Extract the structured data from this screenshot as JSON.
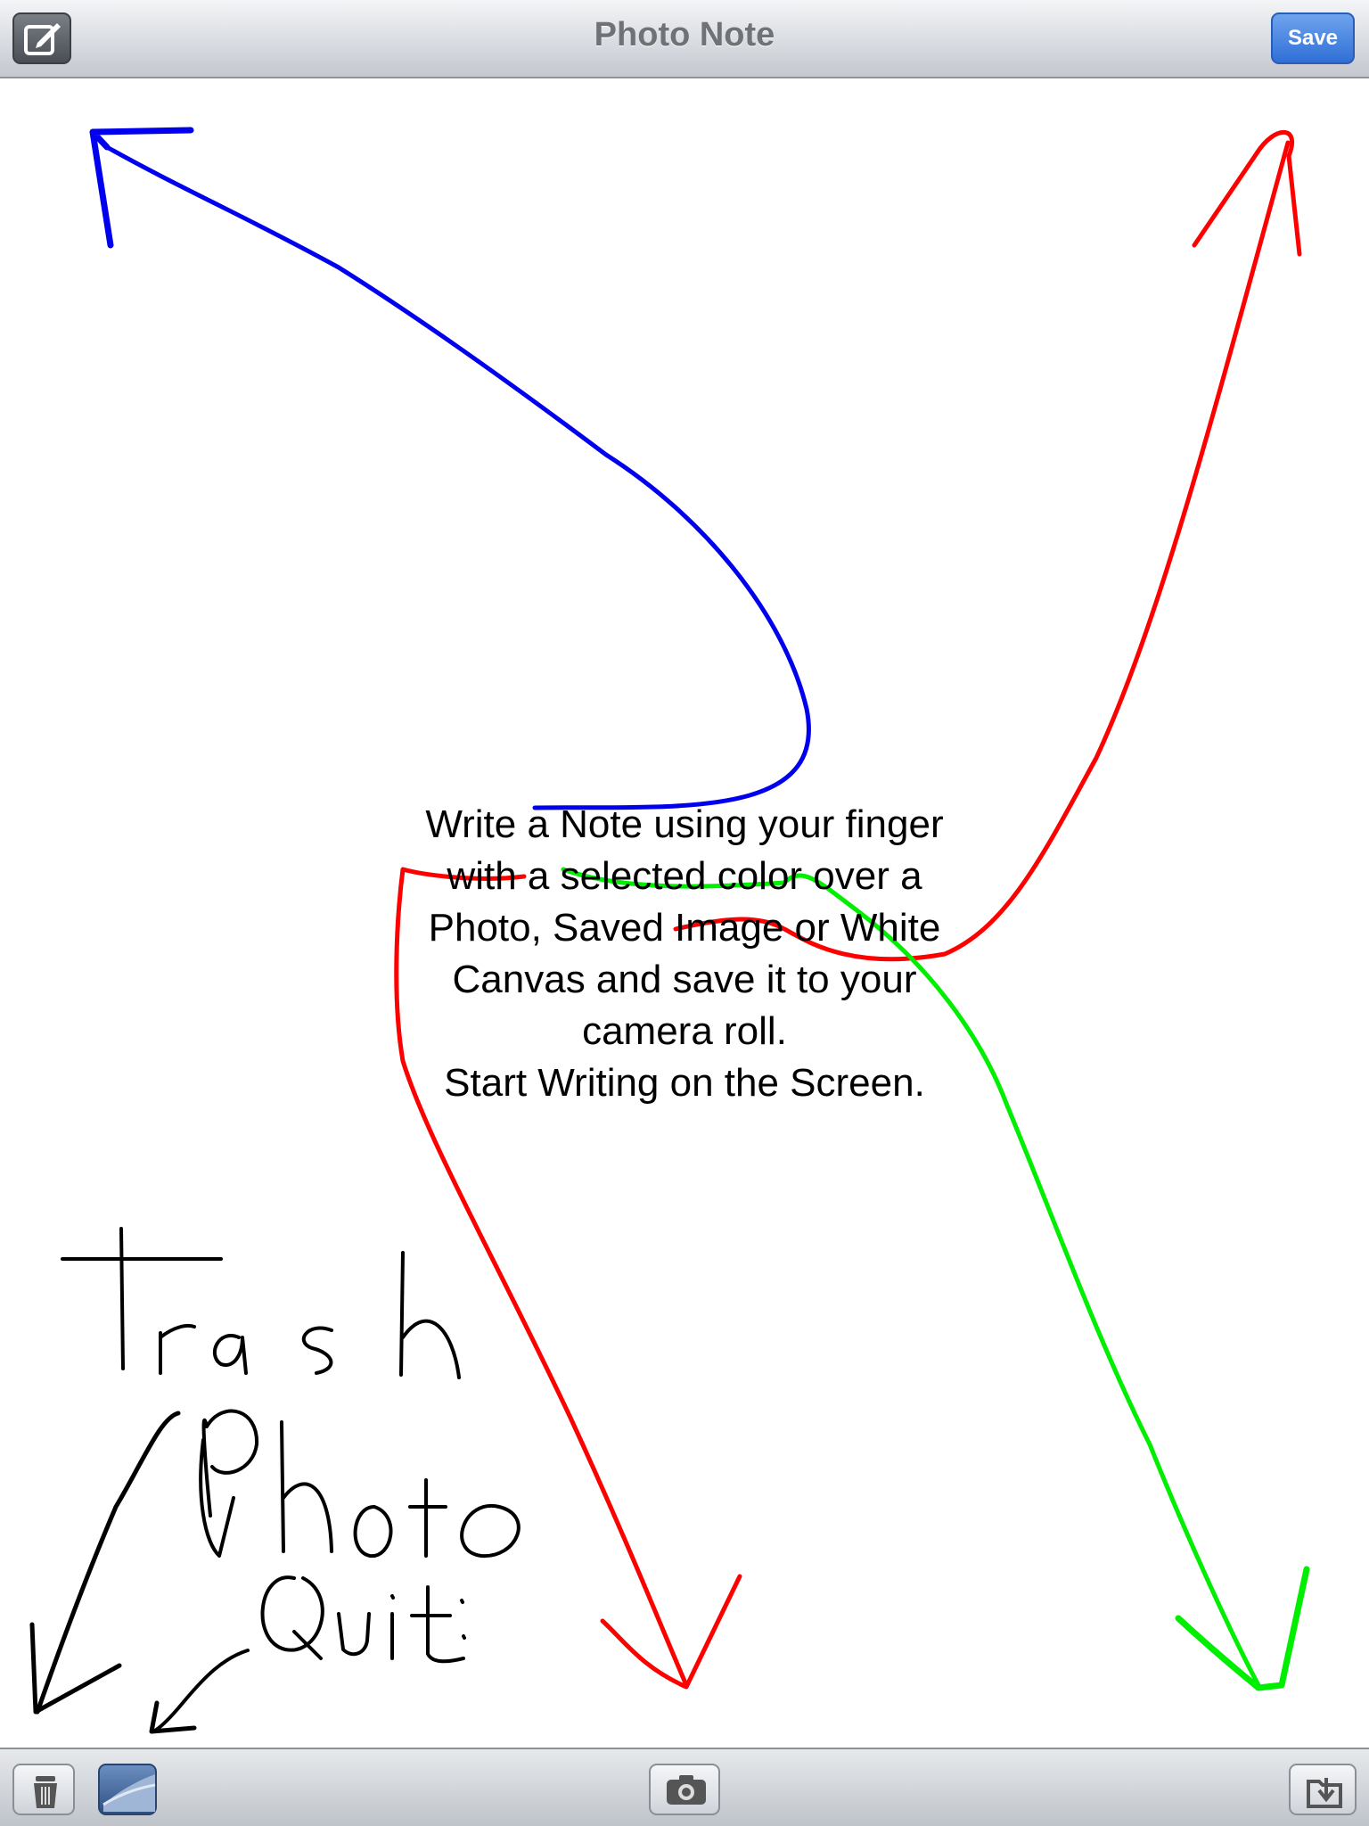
{
  "navbar": {
    "title": "Photo Note",
    "save_label": "Save"
  },
  "instructions": {
    "lines": [
      "Write a Note using your finger",
      "with a selected color over a",
      "Photo, Saved Image or White",
      "Canvas and save it to your",
      "camera roll.",
      "Start Writing on the Screen."
    ]
  },
  "handwriting": {
    "words": [
      "Trash",
      "Photo",
      "Quit"
    ]
  },
  "stroke_colors": {
    "blue": "#0000ee",
    "red": "#ff0000",
    "green": "#00ee00",
    "black": "#000000"
  },
  "toolbar": {
    "icons": [
      "trash-icon",
      "page-curl-icon",
      "camera-icon",
      "folder-import-icon"
    ]
  }
}
